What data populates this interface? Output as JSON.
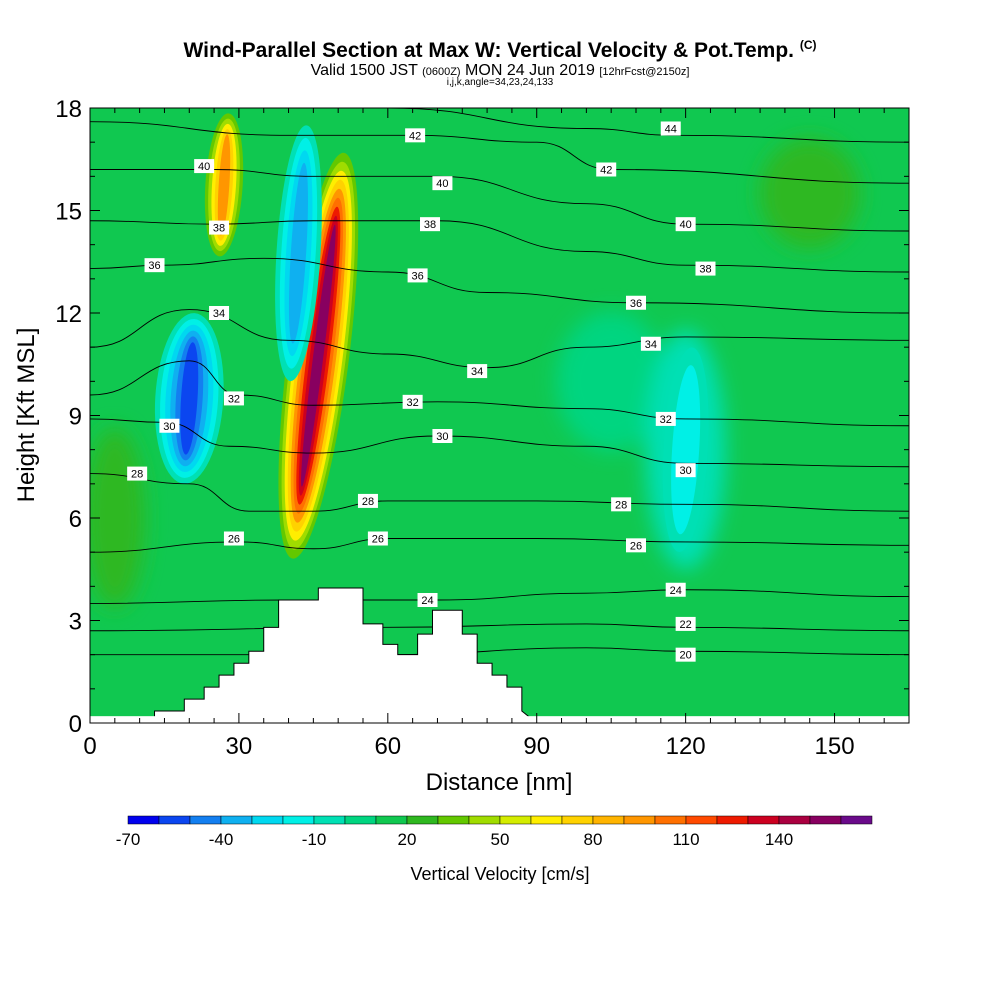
{
  "title": {
    "main": "Wind-Parallel Section at Max W: Vertical Velocity & Pot.Temp.",
    "tag": "(C)",
    "line2_a": "Valid 1500 JST",
    "line2_b": "(0600Z)",
    "line2_c": "MON 24 Jun 2019",
    "line2_d": "[12hrFcst@2150z]",
    "line3": "i,j,k,angle=34,23,24,133"
  },
  "chart_data": {
    "type": "heatmap",
    "xlabel": "Distance [nm]",
    "ylabel": "Height [Kft MSL]",
    "xlim": [
      0,
      165
    ],
    "ylim": [
      0,
      18
    ],
    "x_ticks": [
      "0",
      "30",
      "60",
      "90",
      "120",
      "150"
    ],
    "y_ticks": [
      "0",
      "3",
      "6",
      "9",
      "12",
      "15",
      "18"
    ],
    "colorbar": {
      "label": "Vertical Velocity [cm/s]",
      "tick_labels": [
        "-70",
        "-40",
        "-10",
        "20",
        "50",
        "80",
        "110",
        "140"
      ],
      "bins": [
        -70,
        -60,
        -50,
        -40,
        -30,
        -20,
        -10,
        0,
        10,
        20,
        30,
        40,
        50,
        60,
        70,
        80,
        90,
        100,
        110,
        120,
        130,
        140,
        150,
        160
      ],
      "colors": [
        "#0000ee",
        "#0b46f0",
        "#137ff0",
        "#0fb0f0",
        "#00d8f0",
        "#00f0e6",
        "#00e0b4",
        "#00d580",
        "#10c850",
        "#2fb820",
        "#63c800",
        "#a0dc00",
        "#d4ec00",
        "#ffee00",
        "#ffd200",
        "#ffb400",
        "#ff9600",
        "#ff7000",
        "#ff4a00",
        "#ee1a00",
        "#cc0020",
        "#aa0040",
        "#880060",
        "#6a0a8a"
      ]
    },
    "vertical_velocity_features": [
      {
        "feature": "updraft core",
        "x": 46,
        "y_top": 17,
        "y_bottom": 4.5,
        "max_w": 150
      },
      {
        "feature": "updraft flank",
        "x": 27,
        "y_top": 18,
        "y_bottom": 13.5,
        "max_w": 90
      },
      {
        "feature": "downdraft core",
        "x": 20,
        "y_top": 12,
        "y_bottom": 7,
        "min_w": -60
      },
      {
        "feature": "downdraft flank",
        "x": 42,
        "y_top": 17.5,
        "y_bottom": 10,
        "min_w": -35
      },
      {
        "feature": "weak downdraft region",
        "x": 120,
        "y_top": 11,
        "y_bottom": 5,
        "min_w": -15
      }
    ],
    "terrain": {
      "x": [
        0,
        13,
        13,
        19,
        19,
        23,
        23,
        26,
        26,
        29,
        29,
        32,
        32,
        35,
        35,
        38,
        38,
        42,
        42,
        46,
        46,
        55,
        55,
        59,
        59,
        62,
        62,
        66,
        66,
        69,
        69,
        75,
        75,
        78,
        78,
        81,
        81,
        84,
        84,
        87,
        87,
        90
      ],
      "y": [
        0,
        0,
        0.35,
        0.35,
        0.7,
        0.7,
        1.05,
        1.05,
        1.4,
        1.4,
        1.75,
        1.75,
        2.1,
        2.1,
        2.8,
        2.8,
        3.6,
        3.6,
        3.6,
        3.6,
        3.95,
        3.95,
        2.9,
        2.9,
        2.3,
        2.3,
        2.0,
        2.0,
        2.6,
        2.6,
        3.3,
        3.3,
        2.6,
        2.6,
        1.75,
        1.75,
        1.4,
        1.4,
        1.05,
        1.05,
        0.35,
        0
      ]
    },
    "theta_contours": [
      {
        "level": 20,
        "points": [
          [
            0,
            2.0
          ],
          [
            60,
            2.0
          ],
          [
            100,
            2.2
          ],
          [
            120,
            2.1
          ],
          [
            165,
            2.0
          ]
        ]
      },
      {
        "level": 22,
        "points": [
          [
            0,
            2.7
          ],
          [
            60,
            2.8
          ],
          [
            100,
            2.9
          ],
          [
            120,
            2.8
          ],
          [
            165,
            2.7
          ]
        ]
      },
      {
        "level": 24,
        "points": [
          [
            0,
            3.5
          ],
          [
            40,
            3.6
          ],
          [
            70,
            3.6
          ],
          [
            100,
            3.8
          ],
          [
            120,
            3.9
          ],
          [
            165,
            3.7
          ]
        ]
      },
      {
        "level": 26,
        "points": [
          [
            0,
            5.0
          ],
          [
            30,
            5.3
          ],
          [
            45,
            5.1
          ],
          [
            60,
            5.4
          ],
          [
            90,
            5.4
          ],
          [
            120,
            5.3
          ],
          [
            165,
            5.2
          ]
        ]
      },
      {
        "level": 28,
        "points": [
          [
            0,
            7.3
          ],
          [
            20,
            7.0
          ],
          [
            32,
            6.2
          ],
          [
            45,
            6.2
          ],
          [
            60,
            6.5
          ],
          [
            90,
            6.5
          ],
          [
            120,
            6.4
          ],
          [
            165,
            6.2
          ]
        ]
      },
      {
        "level": 30,
        "points": [
          [
            0,
            8.9
          ],
          [
            15,
            8.8
          ],
          [
            28,
            8.1
          ],
          [
            45,
            7.9
          ],
          [
            70,
            8.4
          ],
          [
            100,
            8.1
          ],
          [
            120,
            7.6
          ],
          [
            165,
            7.5
          ]
        ]
      },
      {
        "level": 32,
        "points": [
          [
            0,
            9.6
          ],
          [
            20,
            10.6
          ],
          [
            30,
            9.6
          ],
          [
            45,
            9.3
          ],
          [
            70,
            9.4
          ],
          [
            100,
            9.2
          ],
          [
            120,
            8.9
          ],
          [
            165,
            8.7
          ]
        ]
      },
      {
        "level": 34,
        "points": [
          [
            0,
            11.0
          ],
          [
            20,
            12.1
          ],
          [
            40,
            11.2
          ],
          [
            60,
            10.8
          ],
          [
            80,
            10.4
          ],
          [
            100,
            11.0
          ],
          [
            120,
            11.3
          ],
          [
            165,
            11.2
          ]
        ]
      },
      {
        "level": 36,
        "points": [
          [
            0,
            13.3
          ],
          [
            15,
            13.4
          ],
          [
            35,
            13.6
          ],
          [
            60,
            13.2
          ],
          [
            80,
            12.6
          ],
          [
            110,
            12.3
          ],
          [
            165,
            12.0
          ]
        ]
      },
      {
        "level": 38,
        "points": [
          [
            0,
            14.7
          ],
          [
            25,
            14.6
          ],
          [
            45,
            14.7
          ],
          [
            70,
            14.7
          ],
          [
            100,
            13.8
          ],
          [
            120,
            13.4
          ],
          [
            165,
            13.2
          ]
        ]
      },
      {
        "level": 40,
        "points": [
          [
            0,
            16.2
          ],
          [
            25,
            16.2
          ],
          [
            45,
            16.0
          ],
          [
            70,
            16.0
          ],
          [
            100,
            15.2
          ],
          [
            120,
            14.6
          ],
          [
            165,
            14.4
          ]
        ]
      },
      {
        "level": 42,
        "points": [
          [
            0,
            17.6
          ],
          [
            40,
            17.2
          ],
          [
            65,
            17.2
          ],
          [
            90,
            17.0
          ],
          [
            105,
            16.2
          ],
          [
            165,
            15.8
          ]
        ]
      },
      {
        "level": 44,
        "points": [
          [
            60,
            18.0
          ],
          [
            100,
            17.4
          ],
          [
            118,
            17.2
          ],
          [
            165,
            17.0
          ]
        ]
      }
    ],
    "contour_labels": [
      {
        "text": "42",
        "x": 65.5,
        "y": 17.2
      },
      {
        "text": "44",
        "x": 117,
        "y": 17.4
      },
      {
        "text": "40",
        "x": 23,
        "y": 16.3
      },
      {
        "text": "42",
        "x": 104,
        "y": 16.2
      },
      {
        "text": "40",
        "x": 71,
        "y": 15.8
      },
      {
        "text": "38",
        "x": 26,
        "y": 14.5
      },
      {
        "text": "38",
        "x": 68.5,
        "y": 14.6
      },
      {
        "text": "40",
        "x": 120,
        "y": 14.6
      },
      {
        "text": "36",
        "x": 13,
        "y": 13.4
      },
      {
        "text": "36",
        "x": 66,
        "y": 13.1
      },
      {
        "text": "38",
        "x": 124,
        "y": 13.3
      },
      {
        "text": "36",
        "x": 110,
        "y": 12.3
      },
      {
        "text": "34",
        "x": 26,
        "y": 12.0
      },
      {
        "text": "34",
        "x": 113,
        "y": 11.1
      },
      {
        "text": "34",
        "x": 78,
        "y": 10.3
      },
      {
        "text": "32",
        "x": 29,
        "y": 9.5
      },
      {
        "text": "32",
        "x": 65,
        "y": 9.4
      },
      {
        "text": "32",
        "x": 116,
        "y": 8.9
      },
      {
        "text": "30",
        "x": 16,
        "y": 8.7
      },
      {
        "text": "30",
        "x": 71,
        "y": 8.4
      },
      {
        "text": "30",
        "x": 120,
        "y": 7.4
      },
      {
        "text": "28",
        "x": 9.5,
        "y": 7.3
      },
      {
        "text": "28",
        "x": 56,
        "y": 6.5
      },
      {
        "text": "28",
        "x": 107,
        "y": 6.4
      },
      {
        "text": "26",
        "x": 29,
        "y": 5.4
      },
      {
        "text": "26",
        "x": 58,
        "y": 5.4
      },
      {
        "text": "26",
        "x": 110,
        "y": 5.2
      },
      {
        "text": "24",
        "x": 68,
        "y": 3.6
      },
      {
        "text": "24",
        "x": 118,
        "y": 3.9
      },
      {
        "text": "22",
        "x": 120,
        "y": 2.9
      },
      {
        "text": "20",
        "x": 120,
        "y": 2.0
      }
    ]
  }
}
